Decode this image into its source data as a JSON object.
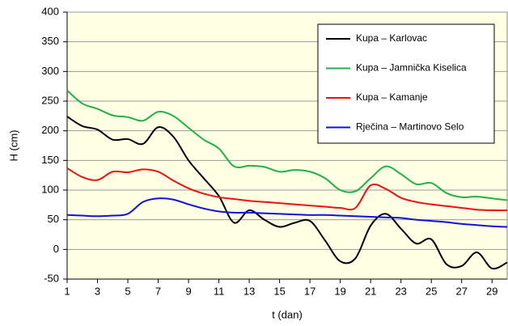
{
  "chart_data": {
    "type": "line",
    "xlabel": "t (dan)",
    "ylabel": "H (cm)",
    "x": [
      1,
      2,
      3,
      4,
      5,
      6,
      7,
      8,
      9,
      10,
      11,
      12,
      13,
      14,
      15,
      16,
      17,
      18,
      19,
      20,
      21,
      22,
      23,
      24,
      25,
      26,
      27,
      28,
      29,
      30
    ],
    "xlim": [
      1,
      30
    ],
    "xticks": [
      1,
      3,
      5,
      7,
      9,
      11,
      13,
      15,
      17,
      19,
      21,
      23,
      25,
      27,
      29
    ],
    "ylim": [
      -50,
      400
    ],
    "yticks": [
      -50,
      0,
      50,
      100,
      150,
      200,
      250,
      300,
      350,
      400
    ],
    "grid": true,
    "legend": "upper right",
    "series": [
      {
        "name": "Kupa – Karlovac",
        "color": "#000000",
        "values": [
          224,
          208,
          202,
          185,
          186,
          178,
          206,
          190,
          150,
          120,
          90,
          45,
          66,
          50,
          38,
          45,
          48,
          15,
          -20,
          -15,
          40,
          60,
          35,
          10,
          17,
          -25,
          -28,
          -5,
          -32,
          -22
        ]
      },
      {
        "name": "Kupa – Jamnička Kiselica",
        "color": "#22b04a",
        "values": [
          268,
          246,
          237,
          226,
          223,
          217,
          232,
          225,
          205,
          185,
          170,
          140,
          141,
          139,
          131,
          134,
          131,
          120,
          100,
          98,
          120,
          140,
          127,
          110,
          112,
          95,
          88,
          89,
          86,
          83
        ]
      },
      {
        "name": "Kupa – Kamanje",
        "color": "#ee1111",
        "values": [
          137,
          122,
          117,
          131,
          130,
          135,
          131,
          116,
          103,
          94,
          88,
          85,
          82,
          80,
          78,
          76,
          74,
          72,
          70,
          70,
          108,
          102,
          87,
          80,
          76,
          73,
          70,
          67,
          66,
          66
        ]
      },
      {
        "name": "Rječina – Martinovo Selo",
        "color": "#1111dd",
        "values": [
          58,
          57,
          56,
          57,
          60,
          80,
          86,
          84,
          76,
          69,
          64,
          62,
          62,
          61,
          60,
          59,
          58,
          58,
          57,
          56,
          55,
          54,
          53,
          50,
          48,
          46,
          43,
          41,
          39,
          38
        ]
      }
    ]
  }
}
